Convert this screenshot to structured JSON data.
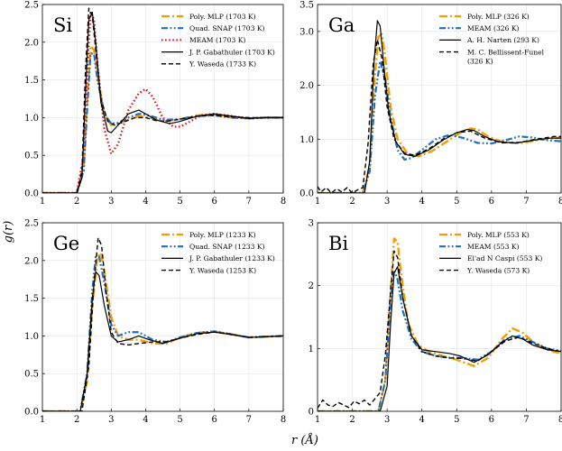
{
  "xlabel": "r (Å)",
  "ylabel": "g(r)",
  "colors": {
    "poly_mlp": "#f59d00",
    "snap": "#1f6fbf",
    "meam_si": "#e8151b",
    "exp": "#000000"
  },
  "chart_data": [
    {
      "type": "line",
      "panel_label": "Si",
      "xlim": [
        1,
        8
      ],
      "ylim": [
        0,
        2.5
      ],
      "xticks": [
        "1",
        "2",
        "3",
        "4",
        "5",
        "6",
        "7",
        "8"
      ],
      "yticks": [
        "0.0",
        "0.5",
        "1.0",
        "1.5",
        "2.0",
        "2.5"
      ],
      "grid": true,
      "legend_position": "top-right",
      "series": [
        {
          "name": "Poly. MLP (1703 K)",
          "style": "dashdot",
          "color": "#f59d00",
          "width": 2.4,
          "x": [
            1.0,
            2.0,
            2.2,
            2.3,
            2.4,
            2.5,
            2.6,
            2.8,
            3.0,
            3.2,
            3.5,
            3.8,
            4.1,
            4.5,
            5.0,
            5.5,
            6.0,
            6.5,
            7.0,
            7.5,
            8.0
          ],
          "y": [
            0,
            0,
            0.3,
            1.2,
            1.95,
            1.9,
            1.55,
            1.05,
            0.9,
            0.92,
            0.97,
            1.02,
            1.0,
            0.95,
            0.98,
            1.03,
            1.04,
            1.0,
            0.99,
            1.0,
            1.0
          ]
        },
        {
          "name": "Quad. SNAP (1703 K)",
          "style": "dashdotdot",
          "color": "#1f6fbf",
          "width": 2.2,
          "x": [
            1.0,
            2.0,
            2.2,
            2.3,
            2.4,
            2.5,
            2.6,
            2.8,
            3.0,
            3.2,
            3.5,
            3.8,
            4.1,
            4.5,
            5.0,
            5.5,
            6.0,
            6.5,
            7.0,
            7.5,
            8.0
          ],
          "y": [
            0,
            0,
            0.3,
            1.1,
            1.85,
            1.85,
            1.5,
            1.05,
            0.92,
            0.93,
            1.0,
            1.05,
            1.03,
            0.97,
            0.98,
            1.02,
            1.03,
            1.0,
            0.99,
            1.0,
            1.0
          ]
        },
        {
          "name": "MEAM (1703 K)",
          "style": "dotted",
          "color": "#e8151b",
          "width": 2.4,
          "x": [
            1.0,
            2.0,
            2.2,
            2.3,
            2.4,
            2.5,
            2.6,
            2.8,
            3.0,
            3.2,
            3.5,
            3.8,
            4.0,
            4.2,
            4.5,
            4.8,
            5.0,
            5.3,
            5.6,
            6.0,
            6.5,
            7.0,
            7.5,
            8.0
          ],
          "y": [
            0,
            0,
            0.5,
            1.6,
            2.4,
            2.3,
            1.7,
            0.85,
            0.52,
            0.65,
            1.1,
            1.32,
            1.38,
            1.28,
            1.0,
            0.88,
            0.88,
            0.95,
            1.03,
            1.05,
            1.02,
            0.99,
            1.0,
            1.0
          ]
        },
        {
          "name": "J. P. Gabathuler (1703 K)",
          "style": "solid",
          "color": "#000000",
          "width": 1.2,
          "x": [
            1.0,
            2.0,
            2.15,
            2.25,
            2.35,
            2.45,
            2.55,
            2.7,
            2.9,
            3.0,
            3.2,
            3.5,
            3.8,
            4.0,
            4.3,
            4.7,
            5.0,
            5.5,
            6.0,
            6.5,
            7.0,
            7.5,
            8.0
          ],
          "y": [
            0,
            0,
            0.2,
            1.3,
            2.3,
            2.4,
            2.0,
            1.2,
            0.82,
            0.8,
            0.9,
            1.05,
            1.1,
            1.05,
            0.97,
            0.92,
            0.95,
            1.02,
            1.05,
            1.02,
            0.99,
            1.0,
            1.0
          ]
        },
        {
          "name": "Y. Waseda (1733 K)",
          "style": "dashed",
          "color": "#000000",
          "width": 1.4,
          "x": [
            1.0,
            2.0,
            2.15,
            2.25,
            2.35,
            2.45,
            2.55,
            2.7,
            2.9,
            3.1,
            3.4,
            3.7,
            4.0,
            4.3,
            4.6,
            5.0,
            5.5,
            6.0,
            6.5,
            7.0,
            7.5,
            8.0
          ],
          "y": [
            0,
            0,
            0.3,
            1.6,
            2.45,
            2.35,
            1.9,
            1.25,
            0.95,
            0.9,
            0.95,
            1.0,
            1.0,
            0.96,
            0.95,
            0.98,
            1.02,
            1.03,
            1.01,
            1.0,
            1.0,
            1.0
          ]
        }
      ]
    },
    {
      "type": "line",
      "panel_label": "Ga",
      "xlim": [
        1,
        8
      ],
      "ylim": [
        0,
        3.5
      ],
      "xticks": [
        "1",
        "2",
        "3",
        "4",
        "5",
        "6",
        "7",
        "8"
      ],
      "yticks": [
        "0.0",
        "1.0",
        "2.0",
        "3.0",
        "3.5"
      ],
      "ytick_values": [
        0,
        1,
        2,
        3,
        3.5
      ],
      "grid": true,
      "legend_position": "top-right",
      "series": [
        {
          "name": "Poly. MLP (326 K)",
          "style": "dashdot",
          "color": "#f59d00",
          "width": 2.4,
          "x": [
            1.0,
            2.3,
            2.5,
            2.65,
            2.75,
            2.85,
            2.95,
            3.1,
            3.3,
            3.6,
            3.9,
            4.3,
            4.7,
            5.1,
            5.4,
            5.6,
            5.9,
            6.3,
            6.8,
            7.3,
            7.8,
            8.0
          ],
          "y": [
            0,
            0,
            0.5,
            2.2,
            2.9,
            2.95,
            2.5,
            1.6,
            1.0,
            0.72,
            0.68,
            0.78,
            0.95,
            1.12,
            1.2,
            1.18,
            1.05,
            0.95,
            0.92,
            0.98,
            1.02,
            1.03
          ]
        },
        {
          "name": "MEAM (326 K)",
          "style": "dashdotdot",
          "color": "#1f6fbf",
          "width": 2.2,
          "x": [
            1.0,
            2.3,
            2.5,
            2.65,
            2.8,
            2.95,
            3.1,
            3.3,
            3.5,
            3.7,
            4.0,
            4.4,
            4.8,
            5.2,
            5.6,
            6.0,
            6.4,
            6.8,
            7.2,
            7.6,
            8.0
          ],
          "y": [
            0,
            0,
            0.4,
            1.8,
            2.45,
            2.1,
            1.4,
            0.8,
            0.62,
            0.65,
            0.8,
            1.0,
            1.08,
            1.02,
            0.93,
            0.92,
            0.98,
            1.05,
            1.03,
            0.98,
            0.96
          ]
        },
        {
          "name": "A. H. Narten (293 K)",
          "style": "solid",
          "color": "#000000",
          "width": 1.2,
          "x": [
            1.0,
            2.35,
            2.5,
            2.62,
            2.72,
            2.8,
            2.9,
            3.05,
            3.25,
            3.5,
            3.8,
            4.2,
            4.6,
            5.0,
            5.3,
            5.5,
            5.8,
            6.2,
            6.7,
            7.2,
            7.7,
            8.0
          ],
          "y": [
            0,
            0,
            0.6,
            2.4,
            3.2,
            3.1,
            2.4,
            1.5,
            0.95,
            0.72,
            0.68,
            0.8,
            0.98,
            1.12,
            1.18,
            1.16,
            1.05,
            0.95,
            0.93,
            0.98,
            1.02,
            1.02
          ]
        },
        {
          "name": "M. C. Bellissent-Funel (326 K)",
          "style": "dashed",
          "color": "#000000",
          "width": 1.4,
          "x": [
            1.0,
            1.1,
            1.25,
            1.4,
            1.55,
            1.7,
            1.85,
            2.0,
            2.15,
            2.3,
            2.45,
            2.6,
            2.72,
            2.85,
            3.0,
            3.2,
            3.5,
            3.8,
            4.2,
            4.6,
            5.0,
            5.4,
            5.8,
            6.3,
            6.8,
            7.3,
            7.8,
            8.0
          ],
          "y": [
            0.12,
            0.02,
            0.1,
            0.0,
            0.08,
            0.02,
            0.1,
            0.0,
            0.06,
            0.1,
            0.9,
            2.4,
            2.85,
            2.5,
            1.6,
            1.0,
            0.74,
            0.7,
            0.82,
            1.0,
            1.12,
            1.15,
            1.02,
            0.93,
            0.94,
            1.0,
            1.05,
            1.05
          ]
        }
      ]
    },
    {
      "type": "line",
      "panel_label": "Ge",
      "xlim": [
        1,
        8
      ],
      "ylim": [
        0,
        2.5
      ],
      "xticks": [
        "1",
        "2",
        "3",
        "4",
        "5",
        "6",
        "7",
        "8"
      ],
      "yticks": [
        "0.0",
        "0.5",
        "1.0",
        "1.5",
        "2.0",
        "2.5"
      ],
      "grid": true,
      "legend_position": "top-right",
      "series": [
        {
          "name": "Poly. MLP (1233 K)",
          "style": "dashdot",
          "color": "#f59d00",
          "width": 2.4,
          "x": [
            1.0,
            2.1,
            2.3,
            2.45,
            2.6,
            2.7,
            2.8,
            3.0,
            3.2,
            3.5,
            3.8,
            4.2,
            4.6,
            5.0,
            5.5,
            6.0,
            6.5,
            7.0,
            7.5,
            8.0
          ],
          "y": [
            0,
            0,
            0.4,
            1.4,
            2.05,
            2.1,
            1.85,
            1.25,
            1.0,
            0.95,
            0.95,
            0.9,
            0.9,
            0.98,
            1.04,
            1.06,
            1.02,
            0.98,
            0.99,
            1.0
          ]
        },
        {
          "name": "Quad. SNAP (1233 K)",
          "style": "dashdotdot",
          "color": "#1f6fbf",
          "width": 2.2,
          "x": [
            1.0,
            2.1,
            2.3,
            2.45,
            2.55,
            2.65,
            2.8,
            3.0,
            3.2,
            3.5,
            3.8,
            4.2,
            4.6,
            5.0,
            5.5,
            6.0,
            6.5,
            7.0,
            7.5,
            8.0
          ],
          "y": [
            0,
            0,
            0.5,
            1.6,
            2.05,
            2.05,
            1.7,
            1.15,
            1.0,
            1.05,
            1.05,
            0.95,
            0.92,
            0.98,
            1.04,
            1.06,
            1.02,
            0.98,
            0.99,
            1.0
          ]
        },
        {
          "name": "J. P. Gabathuler (1233 K)",
          "style": "solid",
          "color": "#000000",
          "width": 1.2,
          "x": [
            1.0,
            2.1,
            2.3,
            2.45,
            2.55,
            2.65,
            2.8,
            3.0,
            3.2,
            3.5,
            3.8,
            4.1,
            4.5,
            5.0,
            5.5,
            6.0,
            6.5,
            7.0,
            7.5,
            8.0
          ],
          "y": [
            0,
            0,
            0.5,
            1.5,
            1.85,
            1.8,
            1.4,
            1.0,
            0.92,
            0.95,
            1.0,
            0.95,
            0.9,
            0.97,
            1.03,
            1.05,
            1.02,
            0.98,
            0.99,
            1.0
          ]
        },
        {
          "name": "Y. Waseda (1253 K)",
          "style": "dashed",
          "color": "#000000",
          "width": 1.4,
          "x": [
            1.0,
            2.15,
            2.35,
            2.5,
            2.62,
            2.72,
            2.85,
            3.0,
            3.2,
            3.5,
            3.8,
            4.2,
            4.6,
            5.0,
            5.5,
            6.0,
            6.5,
            7.0,
            7.5,
            8.0
          ],
          "y": [
            0,
            0,
            0.6,
            1.7,
            2.3,
            2.2,
            1.6,
            1.05,
            0.9,
            0.88,
            0.9,
            0.92,
            0.92,
            0.97,
            1.02,
            1.05,
            1.02,
            0.98,
            0.99,
            1.0
          ]
        }
      ]
    },
    {
      "type": "line",
      "panel_label": "Bi",
      "xlim": [
        1,
        8
      ],
      "ylim": [
        0,
        3
      ],
      "xticks": [
        "1",
        "2",
        "3",
        "4",
        "5",
        "6",
        "7",
        "8"
      ],
      "yticks": [
        "0",
        "1",
        "2",
        "3"
      ],
      "grid": true,
      "legend_position": "top-right",
      "series": [
        {
          "name": "Poly. MLP (553 K)",
          "style": "dashdot",
          "color": "#f59d00",
          "width": 2.4,
          "x": [
            1.0,
            2.75,
            2.95,
            3.1,
            3.2,
            3.3,
            3.4,
            3.6,
            3.9,
            4.2,
            4.6,
            5.0,
            5.5,
            5.9,
            6.3,
            6.6,
            6.9,
            7.2,
            7.6,
            8.0
          ],
          "y": [
            0,
            0,
            0.5,
            1.9,
            2.75,
            2.7,
            2.2,
            1.4,
            1.05,
            0.95,
            0.88,
            0.82,
            0.72,
            0.85,
            1.15,
            1.32,
            1.25,
            1.1,
            0.98,
            0.92
          ]
        },
        {
          "name": "MEAM (553 K)",
          "style": "dashdotdot",
          "color": "#1f6fbf",
          "width": 2.2,
          "x": [
            1.0,
            2.75,
            2.95,
            3.1,
            3.2,
            3.3,
            3.45,
            3.7,
            4.0,
            4.4,
            4.8,
            5.2,
            5.6,
            6.0,
            6.4,
            6.8,
            7.2,
            7.6,
            8.0
          ],
          "y": [
            0,
            0,
            0.5,
            1.8,
            2.25,
            2.1,
            1.6,
            1.15,
            0.95,
            0.88,
            0.85,
            0.85,
            0.82,
            0.95,
            1.15,
            1.2,
            1.1,
            1.0,
            0.96
          ]
        },
        {
          "name": "El'ad N Caspi (553 K)",
          "style": "solid",
          "color": "#000000",
          "width": 1.2,
          "x": [
            1.0,
            2.8,
            3.0,
            3.1,
            3.2,
            3.3,
            3.45,
            3.7,
            4.0,
            4.4,
            4.8,
            5.1,
            5.5,
            5.9,
            6.3,
            6.6,
            6.9,
            7.2,
            7.6,
            8.0
          ],
          "y": [
            0,
            0,
            0.4,
            1.4,
            2.2,
            2.3,
            1.8,
            1.2,
            0.98,
            0.95,
            0.92,
            0.88,
            0.78,
            0.9,
            1.1,
            1.2,
            1.15,
            1.05,
            0.98,
            0.95
          ]
        },
        {
          "name": "Y. Waseda (573 K)",
          "style": "dashed",
          "color": "#000000",
          "width": 1.4,
          "x": [
            1.0,
            1.15,
            1.3,
            1.45,
            1.6,
            1.75,
            1.9,
            2.05,
            2.2,
            2.35,
            2.5,
            2.65,
            2.8,
            2.95,
            3.1,
            3.2,
            3.3,
            3.45,
            3.7,
            4.0,
            4.4,
            4.8,
            5.2,
            5.6,
            6.0,
            6.4,
            6.8,
            7.2,
            7.6,
            8.0
          ],
          "y": [
            0.05,
            0.18,
            0.1,
            0.08,
            0.14,
            0.1,
            0.06,
            0.16,
            0.12,
            0.18,
            0.1,
            0.2,
            0.3,
            0.9,
            1.9,
            2.55,
            2.45,
            1.8,
            1.2,
            0.95,
            0.88,
            0.85,
            0.84,
            0.8,
            0.95,
            1.12,
            1.18,
            1.08,
            1.0,
            0.95
          ]
        }
      ]
    }
  ]
}
